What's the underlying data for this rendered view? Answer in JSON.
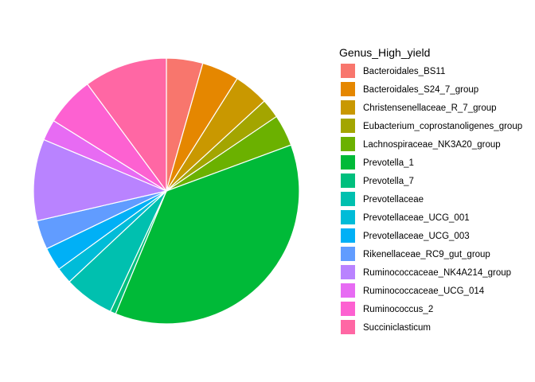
{
  "chart_data": {
    "type": "pie",
    "legend_title": "Genus_High_yield",
    "legend_position": "right",
    "slice_border": "#ffffff",
    "start_angle_deg": 0,
    "direction": "clockwise",
    "slices": [
      {
        "label": "Bacteroidales_BS11",
        "value": 4.5,
        "color": "#F8766D"
      },
      {
        "label": "Bacteroidales_S24_7_group",
        "value": 4.6,
        "color": "#E58700"
      },
      {
        "label": "Christensenellaceae_R_7_group",
        "value": 4.3,
        "color": "#C99800"
      },
      {
        "label": "Eubacterium_coprostanoligenes_group",
        "value": 2.4,
        "color": "#A3A500"
      },
      {
        "label": "Lachnospiraceae_NK3A20_group",
        "value": 3.9,
        "color": "#6BB100"
      },
      {
        "label": "Prevotella_1",
        "value": 37.5,
        "color": "#00BA38"
      },
      {
        "label": "Prevotella_7",
        "value": 0.7,
        "color": "#00BF7D"
      },
      {
        "label": "Prevotellaceae",
        "value": 6.2,
        "color": "#00C0AF"
      },
      {
        "label": "Prevotellaceae_UCG_001",
        "value": 2.0,
        "color": "#00BCD8"
      },
      {
        "label": "Prevotellaceae_UCG_003",
        "value": 2.9,
        "color": "#00B0F6"
      },
      {
        "label": "Rikenellaceae_RC9_gut_group",
        "value": 3.6,
        "color": "#619CFF"
      },
      {
        "label": "Ruminococcaceae_NK4A214_group",
        "value": 10.1,
        "color": "#B983FF"
      },
      {
        "label": "Ruminococcaceae_UCG_014",
        "value": 2.6,
        "color": "#E76BF3"
      },
      {
        "label": "Ruminococcus_2",
        "value": 6.1,
        "color": "#FD61D1"
      },
      {
        "label": "Succiniclasticum",
        "value": 10.3,
        "color": "#FF67A4"
      }
    ]
  }
}
